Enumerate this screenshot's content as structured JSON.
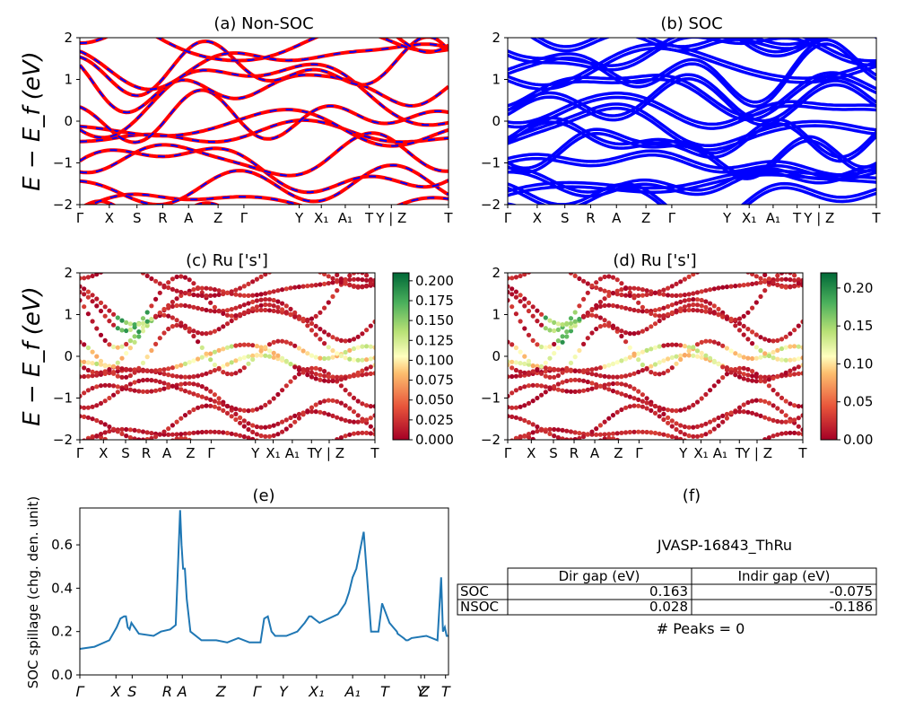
{
  "chart_data": [
    {
      "type": "line",
      "id": "a",
      "title": "(a) Non-SOC",
      "ylabel": "E − E_f (eV)",
      "ylim": [
        -2,
        2
      ],
      "yticks": [
        "2",
        "1",
        "0",
        "−1",
        "−2"
      ],
      "kpath": [
        "Γ",
        "X",
        "S",
        "R",
        "A",
        "Z",
        "Γ",
        "Y",
        "X₁",
        "A₁",
        "T",
        "Y | Z",
        "T"
      ],
      "series": [
        {
          "name": "Non-SOC",
          "color": "#ff0000",
          "dashed_overlay": "#0000ff"
        }
      ]
    },
    {
      "type": "line",
      "id": "b",
      "title": "(b) SOC",
      "ylim": [
        -2,
        2
      ],
      "yticks": [
        "2",
        "1",
        "0",
        "−1",
        "−2"
      ],
      "kpath": [
        "Γ",
        "X",
        "S",
        "R",
        "A",
        "Z",
        "Γ",
        "Y",
        "X₁",
        "A₁",
        "T",
        "Y | Z",
        "T"
      ],
      "series": [
        {
          "name": "SOC",
          "color": "#0000ff"
        }
      ]
    },
    {
      "type": "scatter",
      "id": "c",
      "title": "(c)  Ru ['s']",
      "ylabel": "E − E_f (eV)",
      "ylim": [
        -2,
        2
      ],
      "yticks": [
        "2",
        "1",
        "0",
        "−1",
        "−2"
      ],
      "kpath": [
        "Γ",
        "X",
        "S",
        "R",
        "A",
        "Z",
        "Γ",
        "Y",
        "X₁",
        "A₁",
        "T",
        "Y | Z",
        "T"
      ],
      "colorbar": {
        "min": 0.0,
        "max": 0.21,
        "ticks": [
          "0.200",
          "0.175",
          "0.150",
          "0.125",
          "0.100",
          "0.075",
          "0.050",
          "0.025",
          "0.000"
        ]
      }
    },
    {
      "type": "scatter",
      "id": "d",
      "title": "(d) Ru ['s']",
      "ylim": [
        -2,
        2
      ],
      "yticks": [
        "2",
        "1",
        "0",
        "−1",
        "−2"
      ],
      "kpath": [
        "Γ",
        "X",
        "S",
        "R",
        "A",
        "Z",
        "Γ",
        "Y",
        "X₁",
        "A₁",
        "T",
        "Y | Z",
        "T"
      ],
      "colorbar": {
        "min": 0.0,
        "max": 0.22,
        "ticks": [
          "0.20",
          "0.15",
          "0.10",
          "0.05",
          "0.00"
        ]
      }
    },
    {
      "type": "line",
      "id": "e",
      "title": "(e)",
      "ylabel": "SOC spillage (chg. den. unit)",
      "ylim": [
        0.0,
        0.77
      ],
      "yticks": [
        "0.0",
        "0.2",
        "0.4",
        "0.6"
      ],
      "xticks": [
        "Γ",
        "X",
        "S",
        "R",
        "A",
        "Z",
        "Γ",
        "Y",
        "X₁",
        "A₁",
        "T",
        "Y",
        "Z",
        "T"
      ],
      "series": [
        {
          "name": "spillage",
          "color": "#1f77b4",
          "x": [
            0,
            0.04,
            0.08,
            0.1,
            0.11,
            0.12,
            0.125,
            0.13,
            0.135,
            0.14,
            0.16,
            0.2,
            0.22,
            0.245,
            0.26,
            0.272,
            0.276,
            0.28,
            0.285,
            0.29,
            0.3,
            0.33,
            0.37,
            0.4,
            0.43,
            0.46,
            0.49,
            0.5,
            0.51,
            0.52,
            0.53,
            0.56,
            0.59,
            0.61,
            0.622,
            0.628,
            0.635,
            0.65,
            0.7,
            0.72,
            0.73,
            0.74,
            0.75,
            0.77,
            0.79,
            0.81,
            0.82,
            0.84,
            0.85,
            0.86,
            0.862,
            0.87,
            0.878,
            0.885,
            0.89,
            0.9,
            0.94,
            0.97,
            0.98,
            0.985,
            0.99,
            0.995,
            1.0
          ],
          "values": [
            0.12,
            0.13,
            0.16,
            0.22,
            0.26,
            0.27,
            0.27,
            0.22,
            0.21,
            0.24,
            0.19,
            0.18,
            0.2,
            0.21,
            0.23,
            0.76,
            0.6,
            0.49,
            0.49,
            0.35,
            0.2,
            0.16,
            0.16,
            0.15,
            0.17,
            0.15,
            0.15,
            0.26,
            0.27,
            0.2,
            0.18,
            0.18,
            0.2,
            0.24,
            0.27,
            0.27,
            0.26,
            0.24,
            0.28,
            0.33,
            0.38,
            0.45,
            0.49,
            0.66,
            0.2,
            0.2,
            0.33,
            0.24,
            0.22,
            0.2,
            0.19,
            0.18,
            0.17,
            0.16,
            0.16,
            0.17,
            0.18,
            0.16,
            0.45,
            0.2,
            0.22,
            0.18,
            0.18
          ]
        }
      ]
    }
  ],
  "panel_f": {
    "title": "(f)",
    "material": "JVASP-16843_ThRu",
    "table": {
      "headers": [
        "Dir gap (eV)",
        "Indir gap (eV)"
      ],
      "rows": [
        {
          "label": "SOC",
          "dir": "0.163",
          "indir": "-0.075"
        },
        {
          "label": "NSOC",
          "dir": "0.028",
          "indir": "-0.186"
        }
      ]
    },
    "peaks": "# Peaks = 0"
  }
}
